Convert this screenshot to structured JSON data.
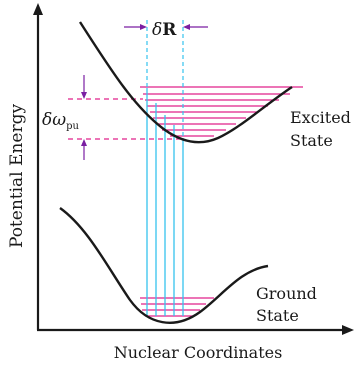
{
  "axes": {
    "y_label": "Potential Energy",
    "x_label": "Nuclear Coordinates"
  },
  "labels": {
    "excited_line1": "Excited",
    "excited_line2": "State",
    "ground_line1": "Ground",
    "ground_line2": "State",
    "delta_r_symbol": "δ",
    "delta_r_bold": "R",
    "delta_omega_symbol": "δω",
    "delta_omega_sub": "pu"
  },
  "colors": {
    "curve": "#1a1a1a",
    "levels": "#e0208a",
    "transitions": "#35c3ee",
    "arrows": "#7a1fa2"
  }
}
